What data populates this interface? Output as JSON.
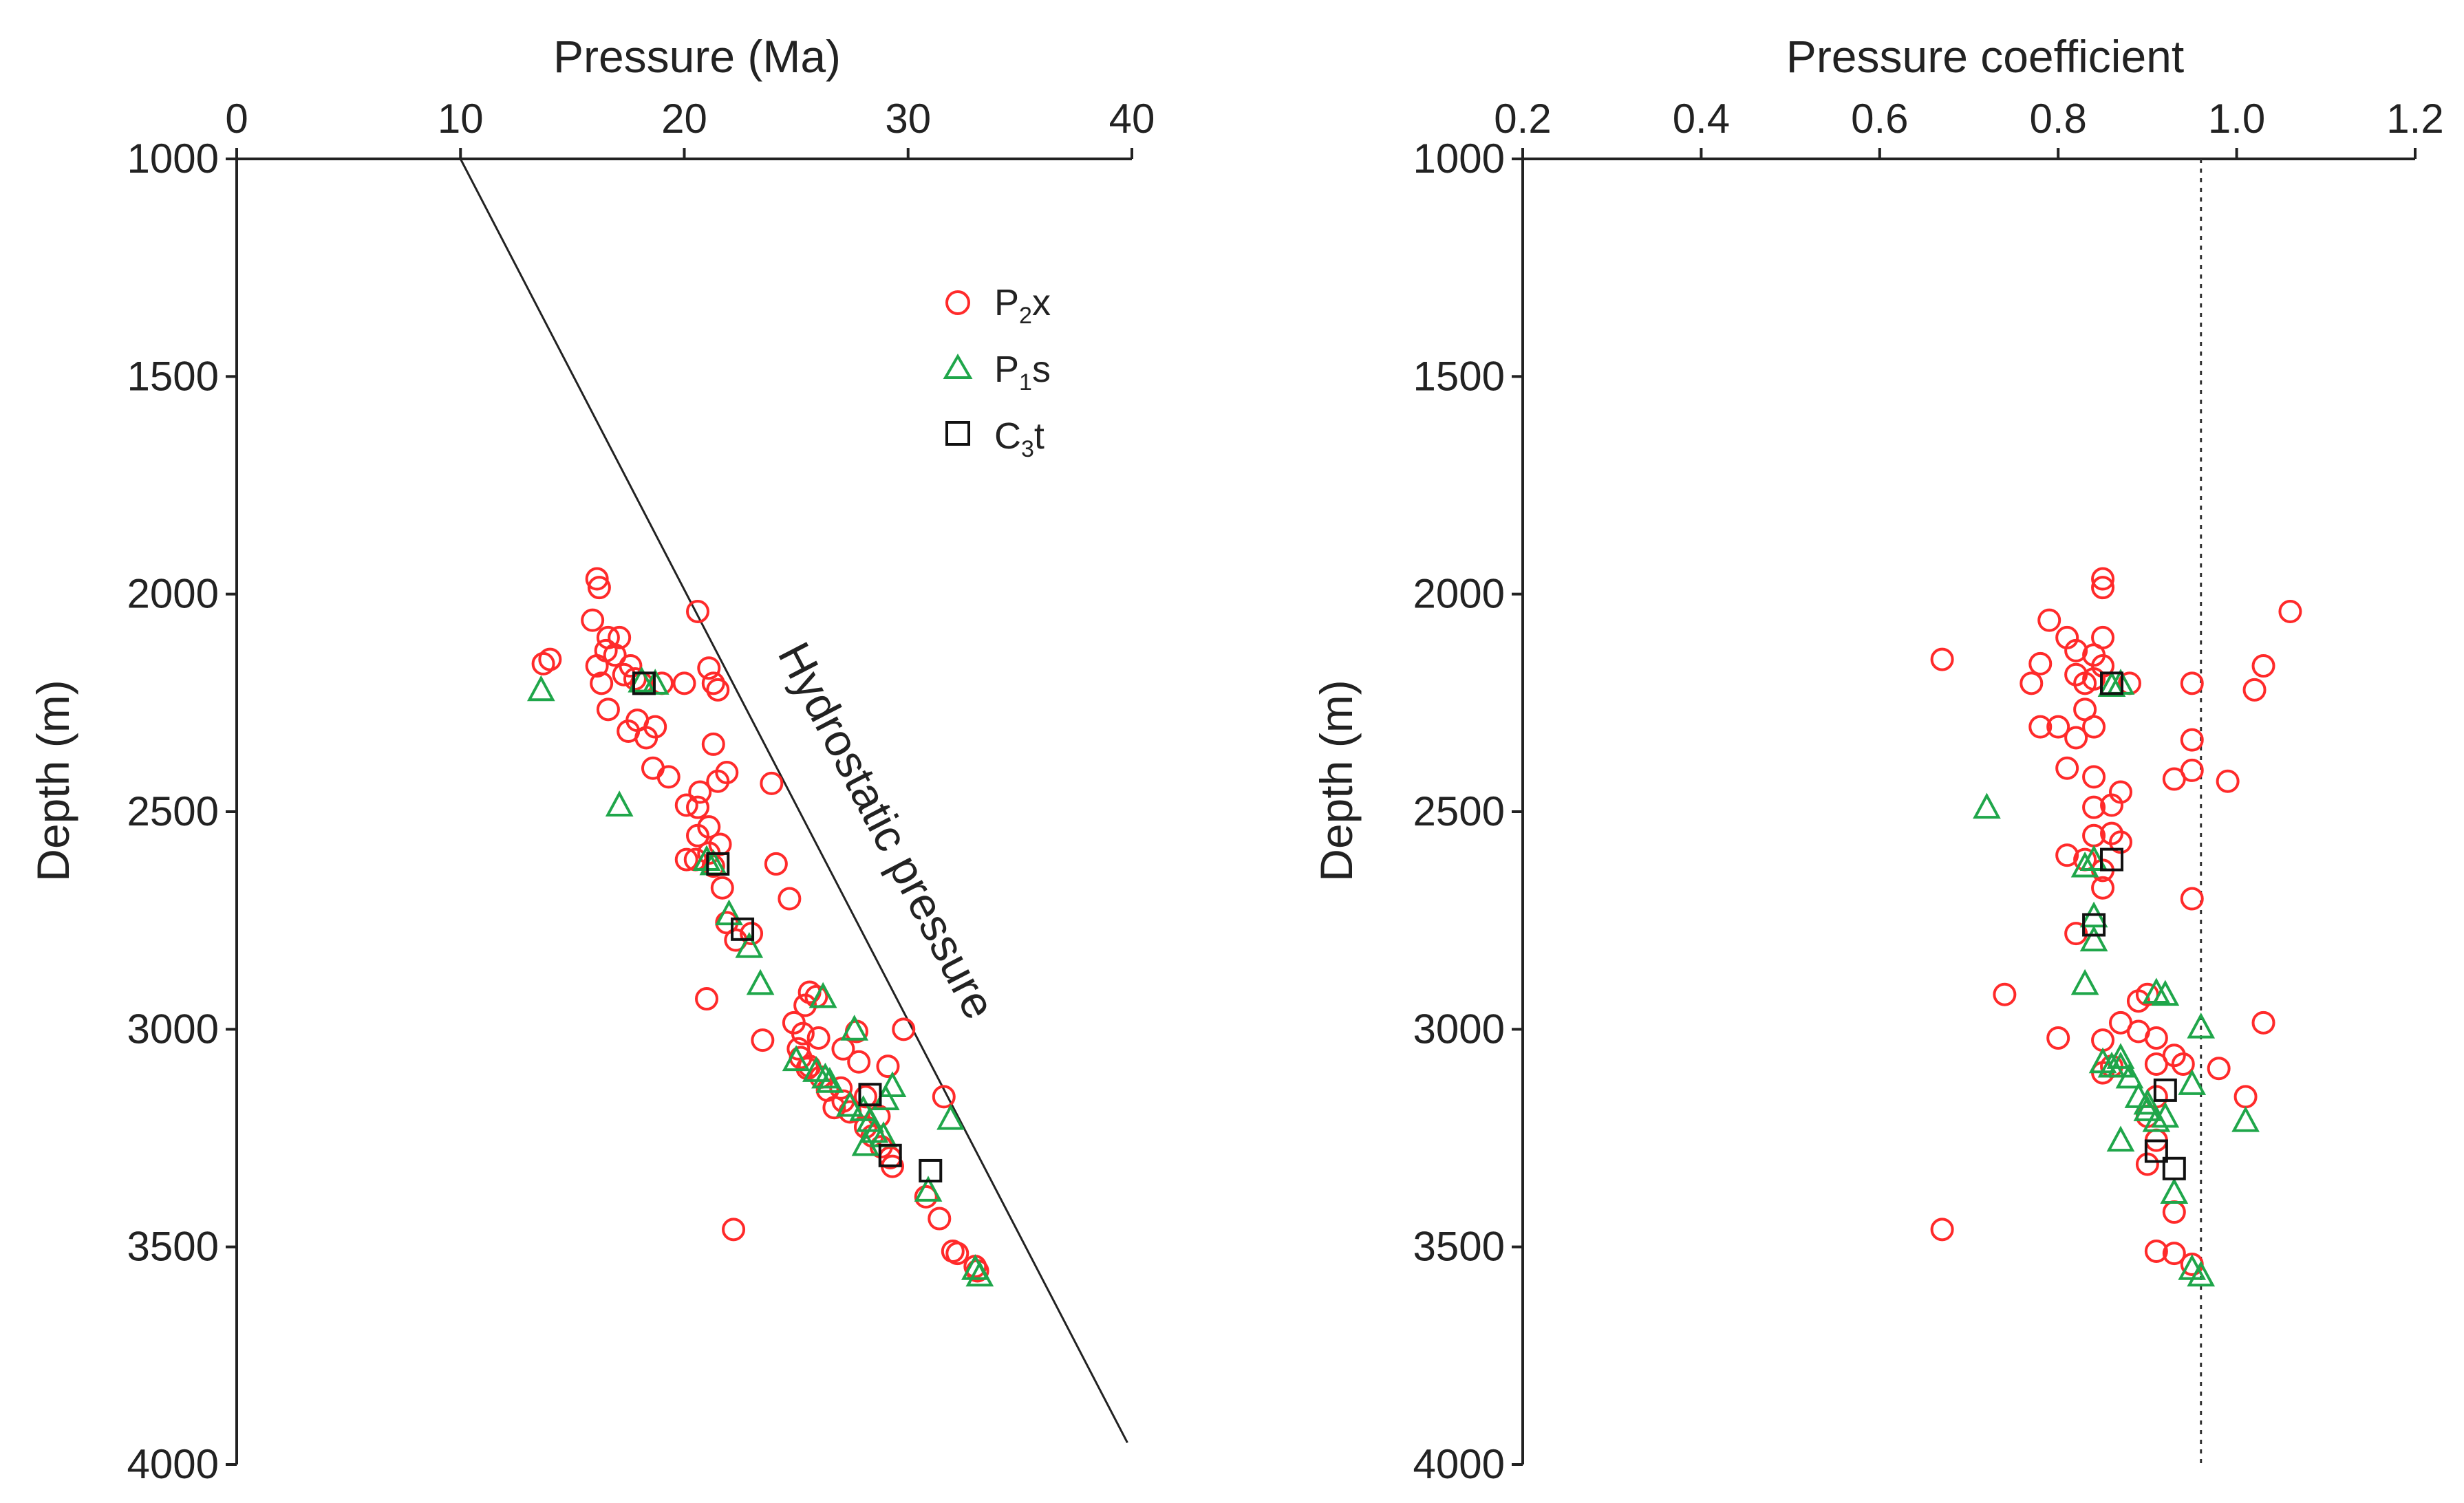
{
  "chart_data": [
    {
      "type": "scatter",
      "panel": "left",
      "title": "",
      "xlabel": "Pressure (Ma)",
      "ylabel": "Depth (m)",
      "xlim": [
        0,
        40
      ],
      "ylim": [
        1000,
        4000
      ],
      "y_inverted": true,
      "x_axis_position": "top",
      "xticks": [
        "0",
        "10",
        "20",
        "30",
        "40"
      ],
      "yticks": [
        "1000",
        "1500",
        "2000",
        "2500",
        "3000",
        "3500",
        "4000"
      ],
      "legend": {
        "location": "top-right",
        "entries": [
          {
            "base": "P",
            "sub": "2",
            "rest": "x",
            "marker": "circle",
            "color": "#ff2a2a"
          },
          {
            "base": "P",
            "sub": "1",
            "rest": "s",
            "marker": "triangle",
            "color": "#1fa64a"
          },
          {
            "base": "C",
            "sub": "3",
            "rest": "t",
            "marker": "square",
            "color": "#111111"
          }
        ]
      },
      "reference_line": {
        "label": "Hydrostatic pressure",
        "from": [
          10,
          1000
        ],
        "to": [
          39.8,
          3950
        ]
      },
      "series": [
        {
          "name": "P2x",
          "marker": "circle",
          "color": "#ff2a2a",
          "points": [
            [
              16.1,
              1965
            ],
            [
              16.2,
              1985
            ],
            [
              15.9,
              2060
            ],
            [
              16.6,
              2100
            ],
            [
              17.1,
              2100
            ],
            [
              16.5,
              2130
            ],
            [
              16.9,
              2140
            ],
            [
              14.0,
              2150
            ],
            [
              13.7,
              2160
            ],
            [
              16.1,
              2165
            ],
            [
              17.6,
              2165
            ],
            [
              17.3,
              2185
            ],
            [
              17.8,
              2195
            ],
            [
              16.3,
              2205
            ],
            [
              18.1,
              2205
            ],
            [
              19.0,
              2205
            ],
            [
              20.6,
              2040
            ],
            [
              21.1,
              2170
            ],
            [
              21.3,
              2205
            ],
            [
              21.5,
              2220
            ],
            [
              20.0,
              2205
            ],
            [
              16.6,
              2265
            ],
            [
              17.9,
              2290
            ],
            [
              18.7,
              2305
            ],
            [
              17.5,
              2315
            ],
            [
              18.3,
              2330
            ],
            [
              21.3,
              2345
            ],
            [
              18.6,
              2400
            ],
            [
              19.3,
              2420
            ],
            [
              21.9,
              2410
            ],
            [
              21.5,
              2430
            ],
            [
              20.7,
              2455
            ],
            [
              23.9,
              2435
            ],
            [
              20.1,
              2485
            ],
            [
              20.6,
              2490
            ],
            [
              21.1,
              2535
            ],
            [
              20.6,
              2555
            ],
            [
              21.6,
              2575
            ],
            [
              21.1,
              2595
            ],
            [
              20.1,
              2610
            ],
            [
              20.5,
              2610
            ],
            [
              21.3,
              2625
            ],
            [
              24.1,
              2620
            ],
            [
              21.7,
              2675
            ],
            [
              24.7,
              2700
            ],
            [
              21.9,
              2755
            ],
            [
              23.0,
              2780
            ],
            [
              22.3,
              2795
            ],
            [
              21.0,
              2930
            ],
            [
              25.6,
              2915
            ],
            [
              25.4,
              2945
            ],
            [
              25.9,
              2925
            ],
            [
              24.9,
              2985
            ],
            [
              23.5,
              3025
            ],
            [
              25.3,
              3010
            ],
            [
              26.0,
              3020
            ],
            [
              25.1,
              3045
            ],
            [
              25.2,
              3065
            ],
            [
              25.6,
              3085
            ],
            [
              27.7,
              3005
            ],
            [
              29.8,
              3000
            ],
            [
              27.1,
              3045
            ],
            [
              27.8,
              3075
            ],
            [
              29.1,
              3085
            ],
            [
              25.5,
              3090
            ],
            [
              26.1,
              3110
            ],
            [
              27.0,
              3135
            ],
            [
              26.4,
              3140
            ],
            [
              28.1,
              3155
            ],
            [
              27.1,
              3165
            ],
            [
              31.6,
              3155
            ],
            [
              26.7,
              3180
            ],
            [
              27.4,
              3190
            ],
            [
              28.7,
              3200
            ],
            [
              28.1,
              3225
            ],
            [
              28.4,
              3245
            ],
            [
              28.8,
              3270
            ],
            [
              29.2,
              3295
            ],
            [
              29.3,
              3315
            ],
            [
              30.8,
              3385
            ],
            [
              31.4,
              3435
            ],
            [
              22.2,
              3460
            ],
            [
              32.0,
              3510
            ],
            [
              32.2,
              3515
            ],
            [
              33.0,
              3545
            ],
            [
              33.1,
              3555
            ]
          ]
        },
        {
          "name": "P1s",
          "marker": "triangle",
          "color": "#1fa64a",
          "points": [
            [
              13.6,
              2220
            ],
            [
              18.7,
              2205
            ],
            [
              18.1,
              2200
            ],
            [
              17.1,
              2485
            ],
            [
              21.0,
              2610
            ],
            [
              21.3,
              2620
            ],
            [
              22.0,
              2735
            ],
            [
              22.9,
              2810
            ],
            [
              23.4,
              2895
            ],
            [
              26.2,
              2925
            ],
            [
              27.6,
              3000
            ],
            [
              25.0,
              3070
            ],
            [
              25.9,
              3095
            ],
            [
              26.3,
              3110
            ],
            [
              26.5,
              3120
            ],
            [
              27.4,
              3175
            ],
            [
              28.0,
              3185
            ],
            [
              28.3,
              3210
            ],
            [
              28.5,
              3235
            ],
            [
              28.9,
              3245
            ],
            [
              29.0,
              3160
            ],
            [
              29.3,
              3130
            ],
            [
              28.1,
              3265
            ],
            [
              30.9,
              3370
            ],
            [
              31.9,
              3205
            ],
            [
              33.0,
              3550
            ],
            [
              33.2,
              3565
            ]
          ]
        },
        {
          "name": "C3t",
          "marker": "square",
          "color": "#111111",
          "points": [
            [
              18.2,
              2205
            ],
            [
              21.5,
              2620
            ],
            [
              22.6,
              2770
            ],
            [
              28.3,
              3150
            ],
            [
              29.2,
              3290
            ],
            [
              31.0,
              3325
            ]
          ]
        }
      ]
    },
    {
      "type": "scatter",
      "panel": "right",
      "title": "",
      "xlabel": "Pressure coefficient",
      "ylabel": "Depth (m)",
      "xlim": [
        0.2,
        1.2
      ],
      "ylim": [
        1000,
        4000
      ],
      "y_inverted": true,
      "x_axis_position": "top",
      "xticks": [
        "0.2",
        "0.4",
        "0.6",
        "0.8",
        "1.0",
        "1.2"
      ],
      "yticks": [
        "1000",
        "1500",
        "2000",
        "2500",
        "3000",
        "3500",
        "4000"
      ],
      "reference_line": {
        "label": "",
        "x": 0.96,
        "style": "dotted"
      },
      "series": [
        {
          "name": "P2x",
          "marker": "circle",
          "color": "#ff2a2a",
          "points": [
            [
              0.85,
              1965
            ],
            [
              0.85,
              1985
            ],
            [
              0.79,
              2060
            ],
            [
              0.81,
              2100
            ],
            [
              0.85,
              2100
            ],
            [
              0.82,
              2130
            ],
            [
              0.84,
              2140
            ],
            [
              0.67,
              2150
            ],
            [
              0.78,
              2160
            ],
            [
              0.85,
              2165
            ],
            [
              0.82,
              2185
            ],
            [
              0.84,
              2195
            ],
            [
              0.77,
              2205
            ],
            [
              0.83,
              2205
            ],
            [
              0.88,
              2205
            ],
            [
              1.06,
              2040
            ],
            [
              1.03,
              2165
            ],
            [
              0.95,
              2205
            ],
            [
              1.02,
              2220
            ],
            [
              0.83,
              2265
            ],
            [
              0.78,
              2305
            ],
            [
              0.8,
              2305
            ],
            [
              0.84,
              2305
            ],
            [
              0.82,
              2330
            ],
            [
              0.95,
              2335
            ],
            [
              0.81,
              2400
            ],
            [
              0.95,
              2405
            ],
            [
              0.84,
              2420
            ],
            [
              0.93,
              2425
            ],
            [
              0.99,
              2430
            ],
            [
              0.87,
              2455
            ],
            [
              0.86,
              2485
            ],
            [
              0.84,
              2490
            ],
            [
              0.86,
              2550
            ],
            [
              0.84,
              2555
            ],
            [
              0.87,
              2570
            ],
            [
              0.81,
              2600
            ],
            [
              0.83,
              2610
            ],
            [
              0.85,
              2635
            ],
            [
              0.85,
              2675
            ],
            [
              0.95,
              2700
            ],
            [
              0.82,
              2780
            ],
            [
              0.74,
              2920
            ],
            [
              0.89,
              2935
            ],
            [
              0.9,
              2920
            ],
            [
              0.87,
              2985
            ],
            [
              0.89,
              3005
            ],
            [
              0.8,
              3020
            ],
            [
              0.85,
              3025
            ],
            [
              0.91,
              3020
            ],
            [
              1.03,
              2985
            ],
            [
              0.93,
              3060
            ],
            [
              0.94,
              3080
            ],
            [
              0.86,
              3085
            ],
            [
              0.91,
              3080
            ],
            [
              0.85,
              3100
            ],
            [
              0.98,
              3090
            ],
            [
              0.91,
              3155
            ],
            [
              1.01,
              3155
            ],
            [
              0.9,
              3200
            ],
            [
              0.91,
              3255
            ],
            [
              0.9,
              3310
            ],
            [
              0.93,
              3420
            ],
            [
              0.67,
              3460
            ],
            [
              0.91,
              3510
            ],
            [
              0.93,
              3515
            ],
            [
              0.95,
              3540
            ]
          ]
        },
        {
          "name": "P1s",
          "marker": "triangle",
          "color": "#1fa64a",
          "points": [
            [
              0.72,
              2490
            ],
            [
              0.87,
              2205
            ],
            [
              0.86,
              2210
            ],
            [
              0.84,
              2610
            ],
            [
              0.83,
              2625
            ],
            [
              0.84,
              2740
            ],
            [
              0.84,
              2795
            ],
            [
              0.83,
              2895
            ],
            [
              0.91,
              2915
            ],
            [
              0.92,
              2920
            ],
            [
              0.96,
              2995
            ],
            [
              0.85,
              3075
            ],
            [
              0.86,
              3085
            ],
            [
              0.87,
              3065
            ],
            [
              0.87,
              3085
            ],
            [
              0.88,
              3110
            ],
            [
              0.89,
              3155
            ],
            [
              0.9,
              3170
            ],
            [
              0.9,
              3185
            ],
            [
              0.91,
              3210
            ],
            [
              0.92,
              3200
            ],
            [
              0.95,
              3125
            ],
            [
              0.87,
              3255
            ],
            [
              0.93,
              3375
            ],
            [
              1.01,
              3210
            ],
            [
              0.95,
              3550
            ],
            [
              0.96,
              3565
            ]
          ]
        },
        {
          "name": "C3t",
          "marker": "square",
          "color": "#111111",
          "points": [
            [
              0.86,
              2205
            ],
            [
              0.86,
              2610
            ],
            [
              0.84,
              2760
            ],
            [
              0.92,
              3140
            ],
            [
              0.91,
              3280
            ],
            [
              0.93,
              3320
            ]
          ]
        }
      ]
    }
  ]
}
